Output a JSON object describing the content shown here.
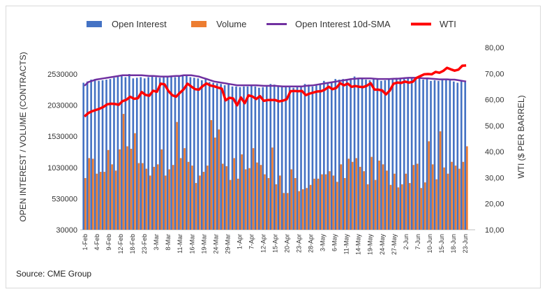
{
  "legend": [
    "Open Interest",
    "Volume",
    "Open Interest 10d-SMA",
    "WTI"
  ],
  "source": "Source: CME Group",
  "colors": {
    "open_interest": "#4472C4",
    "volume": "#ED7D31",
    "sma": "#7030A0",
    "wti": "#FF0000"
  },
  "chart_data": {
    "type": "bar",
    "title": "",
    "ylabel": "OPEN INTEREST / VOLUME (CONTRACTS)",
    "ylabel_right": "WTI ($ PER BARREL)",
    "ylim": [
      30000,
      2530000
    ],
    "yticks": [
      "30000",
      "530000",
      "1030000",
      "1530000",
      "2030000",
      "2530000"
    ],
    "y2lim": [
      10,
      80
    ],
    "y2ticks": [
      "10,00",
      "20,00",
      "30,00",
      "40,00",
      "50,00",
      "60,00",
      "70,00",
      "80,00"
    ],
    "xticks": [
      "1-Feb",
      "4-Feb",
      "9-Feb",
      "12-Feb",
      "18-Feb",
      "23-Feb",
      "3-Mar",
      "8-Mar",
      "11-Mar",
      "16-Mar",
      "19-Mar",
      "24-Mar",
      "29-Mar",
      "1-Apr",
      "7-Apr",
      "12-Apr",
      "15-Apr",
      "20-Apr",
      "23-Apr",
      "28-Apr",
      "3-May",
      "6-May",
      "11-May",
      "14-May",
      "19-May",
      "24-May",
      "27-May",
      "2-Jun",
      "7-Jun",
      "10-Jun",
      "15-Jun",
      "18-Jun",
      "23-Jun"
    ],
    "series": [
      {
        "name": "Open Interest",
        "values": [
          2390000,
          2410000,
          2440000,
          2450000,
          2420000,
          2430000,
          2440000,
          2450000,
          2470000,
          2490000,
          2510000,
          2480000,
          2530000,
          2460000,
          2470000,
          2480000,
          2460000,
          2480000,
          2490000,
          2480000,
          2470000,
          2480000,
          2490000,
          2500000,
          2480000,
          2510000,
          2510000,
          2500000,
          2480000,
          2470000,
          2460000,
          2430000,
          2450000,
          2400000,
          2390000,
          2380000,
          2370000,
          2350000,
          2370000,
          2330000,
          2330000,
          2320000,
          2330000,
          2330000,
          2350000,
          2330000,
          2310000,
          2320000,
          2340000,
          2370000,
          2360000,
          2330000,
          2320000,
          2330000,
          2320000,
          2310000,
          2340000,
          2320000,
          2370000,
          2360000,
          2330000,
          2350000,
          2380000,
          2420000,
          2400000,
          2390000,
          2450000,
          2440000,
          2450000,
          2440000,
          2460000,
          2490000,
          2470000,
          2450000,
          2440000,
          2430000,
          2450000,
          2440000,
          2420000,
          2430000,
          2450000,
          2440000,
          2470000,
          2450000,
          2460000,
          2480000,
          2470000,
          2450000,
          2460000,
          2440000,
          2450000,
          2420000,
          2430000,
          2420000,
          2440000,
          2450000,
          2430000,
          2410000,
          2390000,
          2420000,
          2400000
        ]
      },
      {
        "name": "Volume",
        "values": [
          860000,
          1180000,
          1170000,
          930000,
          960000,
          960000,
          1310000,
          1080000,
          980000,
          1320000,
          1890000,
          1370000,
          1330000,
          1580000,
          1100000,
          1100000,
          1010000,
          900000,
          1040000,
          1080000,
          1320000,
          900000,
          1000000,
          1070000,
          1760000,
          1180000,
          1340000,
          1120000,
          1060000,
          780000,
          900000,
          960000,
          1060000,
          1790000,
          1510000,
          1640000,
          1090000,
          1050000,
          830000,
          1180000,
          850000,
          1240000,
          1000000,
          1020000,
          1340000,
          1110000,
          1070000,
          920000,
          860000,
          1350000,
          760000,
          900000,
          620000,
          620000,
          1000000,
          860000,
          650000,
          680000,
          700000,
          750000,
          850000,
          850000,
          920000,
          920000,
          970000,
          900000,
          800000,
          1080000,
          860000,
          1170000,
          1120000,
          1180000,
          1040000,
          970000,
          760000,
          1200000,
          830000,
          1140000,
          1080000,
          980000,
          750000,
          930000,
          710000,
          760000,
          930000,
          780000,
          1070000,
          1090000,
          700000,
          790000,
          1450000,
          1080000,
          840000,
          1610000,
          1030000,
          930000,
          1120000,
          1060000,
          1010000,
          1120000,
          1370000
        ]
      },
      {
        "name": "Open Interest 10d-SMA",
        "values": [
          2340000,
          2400000,
          2420000,
          2440000,
          2450000,
          2460000,
          2470000,
          2480000,
          2490000,
          2500000,
          2510000,
          2510000,
          2510000,
          2510000,
          2510000,
          2510000,
          2505000,
          2500000,
          2500000,
          2495000,
          2490000,
          2490000,
          2490000,
          2495000,
          2500000,
          2500000,
          2510000,
          2510000,
          2510000,
          2500000,
          2490000,
          2470000,
          2450000,
          2430000,
          2410000,
          2400000,
          2390000,
          2380000,
          2370000,
          2360000,
          2350000,
          2350000,
          2350000,
          2350000,
          2350000,
          2350000,
          2345000,
          2340000,
          2340000,
          2340000,
          2340000,
          2335000,
          2330000,
          2330000,
          2330000,
          2330000,
          2330000,
          2330000,
          2340000,
          2345000,
          2350000,
          2360000,
          2370000,
          2380000,
          2390000,
          2400000,
          2410000,
          2420000,
          2430000,
          2440000,
          2450000,
          2455000,
          2460000,
          2460000,
          2460000,
          2460000,
          2455000,
          2450000,
          2450000,
          2450000,
          2450000,
          2455000,
          2455000,
          2460000,
          2465000,
          2470000,
          2470000,
          2470000,
          2465000,
          2460000,
          2460000,
          2455000,
          2450000,
          2445000,
          2445000,
          2445000,
          2440000,
          2440000,
          2430000,
          2420000,
          2410000
        ]
      },
      {
        "name": "WTI",
        "values": [
          53.5,
          54.8,
          55.5,
          56.0,
          56.5,
          57.2,
          58.2,
          58.4,
          58.3,
          58.0,
          59.4,
          59.9,
          61.1,
          60.3,
          60.5,
          62.9,
          61.8,
          61.5,
          63.4,
          63.0,
          66.1,
          65.8,
          63.3,
          61.7,
          61.1,
          62.6,
          63.9,
          66.1,
          65.0,
          64.0,
          63.8,
          65.2,
          66.2,
          65.4,
          65.1,
          64.6,
          64.2,
          59.7,
          60.7,
          60.4,
          57.8,
          60.8,
          58.6,
          61.6,
          61.2,
          60.2,
          61.3,
          59.5,
          59.8,
          59.8,
          59.8,
          59.3,
          59.6,
          60.1,
          63.2,
          63.3,
          63.2,
          63.3,
          61.7,
          62.3,
          62.7,
          63.1,
          63.2,
          63.8,
          64.9,
          64.0,
          64.5,
          66.3,
          65.5,
          66.1,
          64.9,
          65.2,
          64.9,
          64.8,
          65.3,
          66.3,
          63.8,
          63.8,
          63.5,
          62.0,
          63.4,
          66.1,
          66.5,
          66.4,
          66.9,
          66.5,
          66.8,
          68.3,
          69.0,
          69.7,
          69.8,
          69.7,
          70.6,
          70.3,
          71.0,
          72.2,
          71.6,
          71.1,
          71.5,
          73.0,
          73.1
        ]
      }
    ],
    "grid": false,
    "legend_position": "top"
  }
}
